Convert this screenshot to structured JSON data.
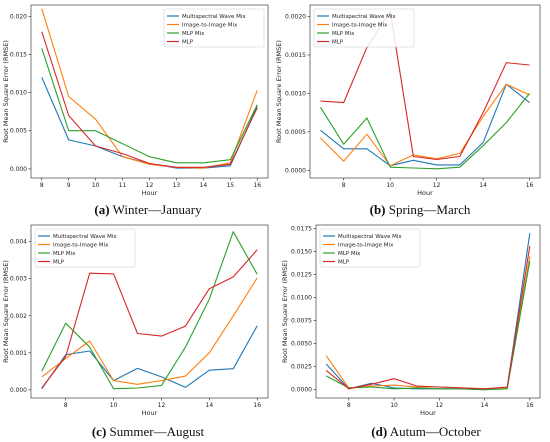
{
  "chart_data": [
    {
      "type": "line",
      "caption_letter": "(a)",
      "caption": "Winter—January",
      "xlabel": "Hour",
      "ylabel": "Root Mean Square Error (RMSE)",
      "x": [
        8,
        9,
        10,
        11,
        12,
        13,
        14,
        15,
        16
      ],
      "xticks": [
        "8",
        "9",
        "10",
        "11",
        "12",
        "13",
        "14",
        "15",
        "16"
      ],
      "xlim": [
        7.6,
        16.4
      ],
      "ylim": [
        -0.0012,
        0.0215
      ],
      "yticks": [
        "0.000",
        "0.005",
        "0.010",
        "0.015",
        "0.020"
      ],
      "ytick_values": [
        0,
        0.005,
        0.01,
        0.015,
        0.02
      ],
      "y_offset_label": "",
      "series": [
        {
          "name": "Multispectral Wave Mix",
          "color": "#1f77b4",
          "values": [
            0.012,
            0.0038,
            0.003,
            0.0016,
            0.0007,
            0.0001,
            0.0001,
            0.0004,
            0.0082
          ]
        },
        {
          "name": "Image-to-Image Mix",
          "color": "#ff7f0e",
          "values": [
            0.021,
            0.0095,
            0.0065,
            0.0016,
            0.0006,
            0.0002,
            0.0001,
            0.0008,
            0.0103
          ]
        },
        {
          "name": "MLP Mix",
          "color": "#2ca02c",
          "values": [
            0.0158,
            0.005,
            0.005,
            0.0033,
            0.0016,
            0.0008,
            0.0008,
            0.0012,
            0.0084
          ]
        },
        {
          "name": "MLP",
          "color": "#d62728",
          "values": [
            0.018,
            0.007,
            0.003,
            0.002,
            0.0007,
            0.0002,
            0.0002,
            0.0006,
            0.008
          ]
        }
      ]
    },
    {
      "type": "line",
      "caption_letter": "(b)",
      "caption": "Spring—March",
      "xlabel": "Hour",
      "ylabel": "Root Mean Square Error (RMSE)",
      "x": [
        7,
        8,
        9,
        10,
        11,
        12,
        13,
        14,
        15,
        16
      ],
      "xticks": [
        "8",
        "10",
        "12",
        "14",
        "16"
      ],
      "xtick_values": [
        8,
        10,
        12,
        14,
        16
      ],
      "xlim": [
        6.55,
        16.45
      ],
      "ylim": [
        -0.0001,
        0.00215
      ],
      "yticks": [
        "0.0000",
        "0.0005",
        "0.0010",
        "0.0015",
        "0.0020"
      ],
      "ytick_values": [
        0,
        0.0005,
        0.001,
        0.0015,
        0.002
      ],
      "y_offset_label": "",
      "series": [
        {
          "name": "Multispectral Wave Mix",
          "color": "#1f77b4",
          "values": [
            0.00052,
            0.00028,
            0.00028,
            6e-05,
            0.00013,
            7e-05,
            7e-05,
            0.00036,
            0.00112,
            0.00088
          ]
        },
        {
          "name": "Image-to-Image Mix",
          "color": "#ff7f0e",
          "values": [
            0.00042,
            0.00012,
            0.00047,
            6e-05,
            0.0002,
            0.00015,
            0.00022,
            0.0007,
            0.00112,
            0.00098
          ]
        },
        {
          "name": "MLP Mix",
          "color": "#2ca02c",
          "values": [
            0.00082,
            0.00034,
            0.00068,
            4e-05,
            3e-05,
            2e-05,
            4e-05,
            0.00032,
            0.00062,
            0.001
          ]
        },
        {
          "name": "MLP",
          "color": "#d62728",
          "values": [
            0.0009,
            0.00088,
            0.0016,
            0.00207,
            0.00018,
            0.00014,
            0.00018,
            0.00075,
            0.0014,
            0.00137
          ]
        }
      ]
    },
    {
      "type": "line",
      "caption_letter": "(c)",
      "caption": "Summer—August",
      "xlabel": "Hour",
      "ylabel": "Root Mean Square Error (RMSE)",
      "x": [
        7,
        8,
        9,
        10,
        11,
        12,
        13,
        14,
        15,
        16
      ],
      "xticks": [
        "8",
        "10",
        "12",
        "14",
        "16"
      ],
      "xtick_values": [
        8,
        10,
        12,
        14,
        16
      ],
      "xlim": [
        6.55,
        16.45
      ],
      "ylim": [
        -0.00022,
        0.00445
      ],
      "yticks": [
        "0.000",
        "0.001",
        "0.002",
        "0.003",
        "0.004"
      ],
      "ytick_values": [
        0,
        0.001,
        0.002,
        0.003,
        0.004
      ],
      "y_offset_label": "",
      "series": [
        {
          "name": "Multispectral Wave Mix",
          "color": "#1f77b4",
          "values": [
            3e-05,
            0.00095,
            0.00105,
            0.00025,
            0.00058,
            0.00035,
            7e-05,
            0.00053,
            0.00057,
            0.00173
          ]
        },
        {
          "name": "Image-to-Image Mix",
          "color": "#ff7f0e",
          "values": [
            0.00035,
            0.00085,
            0.00132,
            0.00025,
            0.00015,
            0.00025,
            0.00037,
            0.001,
            0.002,
            0.00302
          ]
        },
        {
          "name": "MLP Mix",
          "color": "#2ca02c",
          "values": [
            0.0005,
            0.0018,
            0.00115,
            3e-05,
            5e-05,
            0.00012,
            0.00115,
            0.00245,
            0.00427,
            0.00312
          ]
        },
        {
          "name": "MLP",
          "color": "#d62728",
          "values": [
            5e-05,
            0.0009,
            0.00315,
            0.00313,
            0.00152,
            0.00145,
            0.00172,
            0.00273,
            0.00305,
            0.00378
          ]
        }
      ]
    },
    {
      "type": "line",
      "caption_letter": "(d)",
      "caption": "Autum—October",
      "xlabel": "Hour",
      "ylabel": "Root Mean Square Error (RMSE)",
      "x": [
        7,
        8,
        9,
        10,
        11,
        12,
        13,
        14,
        15,
        16
      ],
      "xticks": [
        "8",
        "10",
        "12",
        "14",
        "16"
      ],
      "xtick_values": [
        8,
        10,
        12,
        14,
        16
      ],
      "xlim": [
        6.55,
        16.45
      ],
      "ylim": [
        -0.0009,
        0.0179
      ],
      "yticks": [
        "0.0000",
        "0.0025",
        "0.0050",
        "0.0075",
        "0.0100",
        "0.0125",
        "0.0150",
        "0.0175"
      ],
      "ytick_values": [
        0,
        0.0025,
        0.005,
        0.0075,
        0.01,
        0.0125,
        0.015,
        0.0175
      ],
      "y_offset_label": "",
      "series": [
        {
          "name": "Multispectral Wave Mix",
          "color": "#1f77b4",
          "values": [
            0.0028,
            0.0001,
            0.0007,
            0.0002,
            0.0001,
            0.0001,
            0.0001,
            0.0,
            0.0002,
            0.017
          ]
        },
        {
          "name": "Image-to-Image Mix",
          "color": "#ff7f0e",
          "values": [
            0.0037,
            0.0002,
            0.0004,
            0.0005,
            0.0003,
            0.0003,
            0.0002,
            0.0001,
            0.0002,
            0.0145
          ]
        },
        {
          "name": "MLP Mix",
          "color": "#2ca02c",
          "values": [
            0.0015,
            0.0002,
            0.0003,
            0.0001,
            0.0002,
            0.0001,
            0.0001,
            0.0,
            0.0001,
            0.014
          ]
        },
        {
          "name": "MLP",
          "color": "#d62728",
          "values": [
            0.0021,
            0.0001,
            0.0006,
            0.0012,
            0.0004,
            0.0003,
            0.0002,
            0.0001,
            0.0003,
            0.0156
          ]
        }
      ]
    }
  ]
}
